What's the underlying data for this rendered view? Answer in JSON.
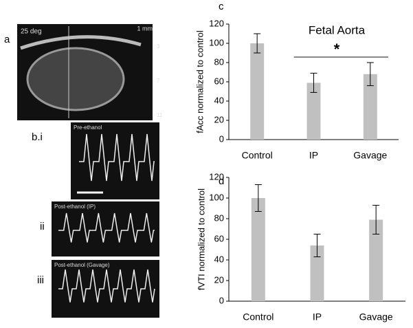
{
  "chart_data": [
    {
      "type": "bar",
      "panel": "c",
      "title": "Fetal Aorta",
      "ylabel": "fAcc normalized to control",
      "categories": [
        "Control",
        "IP",
        "Gavage"
      ],
      "values": [
        100,
        59,
        68
      ],
      "errors": [
        10,
        10,
        12
      ],
      "color": "#c0c0c0",
      "ylim": [
        0,
        120
      ],
      "yticks": [
        0,
        20,
        40,
        60,
        80,
        100,
        120
      ],
      "annotation": "*"
    },
    {
      "type": "bar",
      "panel": "d",
      "ylabel": "fVTI normalized to control",
      "categories": [
        "Control",
        "IP",
        "Gavage"
      ],
      "values": [
        100,
        54,
        79
      ],
      "errors": [
        13,
        11,
        14
      ],
      "color": "#c0c0c0",
      "ylim": [
        0,
        120
      ],
      "yticks": [
        0,
        20,
        40,
        60,
        80,
        100,
        120
      ]
    }
  ],
  "panels": {
    "a": {
      "label": "a",
      "angle": "25 deg",
      "scale": "1 mm",
      "depths": [
        "3",
        "7",
        "11"
      ]
    },
    "b": {
      "label": "b.i",
      "caption": "Pre-ethanol"
    },
    "ii": {
      "label": "ii",
      "caption": "Post-ethanol (IP)"
    },
    "iii": {
      "label": "iii",
      "caption": "Post-ethanol (Gavage)"
    }
  }
}
